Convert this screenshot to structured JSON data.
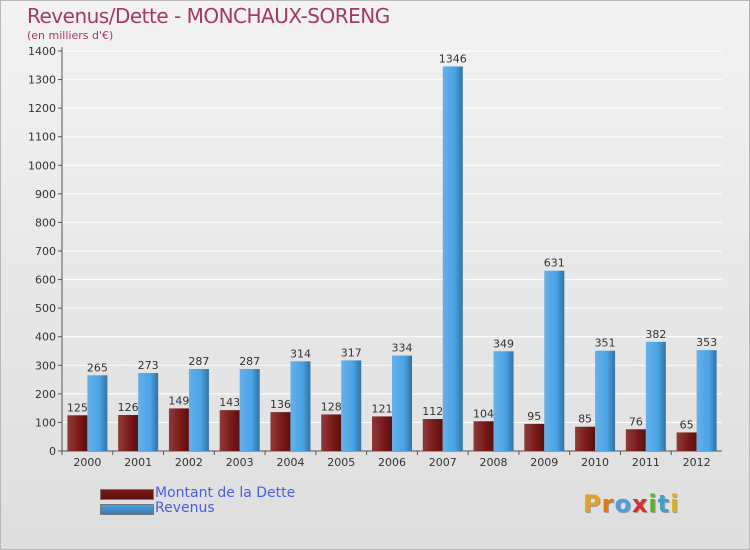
{
  "chart_data": {
    "type": "bar",
    "title": "Revenus/Dette - MONCHAUX-SORENG",
    "subtitle": "(en milliers d'€)",
    "categories": [
      "2000",
      "2001",
      "2002",
      "2003",
      "2004",
      "2005",
      "2006",
      "2007",
      "2008",
      "2009",
      "2010",
      "2011",
      "2012"
    ],
    "series": [
      {
        "name": "Montant de la Dette",
        "color": "#7a1818",
        "values": [
          125,
          126,
          149,
          143,
          136,
          128,
          121,
          112,
          104,
          95,
          85,
          76,
          65
        ]
      },
      {
        "name": "Revenus",
        "color": "#4aa3e6",
        "values": [
          265,
          273,
          287,
          287,
          314,
          317,
          334,
          1346,
          349,
          631,
          351,
          382,
          353
        ]
      }
    ],
    "ylim": [
      0,
      1400
    ],
    "ytick_step": 100,
    "grid": true,
    "xlabel": "",
    "ylabel": ""
  },
  "legend": {
    "items": [
      {
        "label": "Montant de la Dette",
        "color": "#7a1818"
      },
      {
        "label": "Revenus",
        "color": "#4aa3e6"
      }
    ]
  },
  "logo": {
    "letters": [
      "P",
      "r",
      "o",
      "x",
      "i",
      "t",
      "i"
    ],
    "colors": [
      "#e8a020",
      "#e07a10",
      "#4aa0e0",
      "#d03030",
      "#60b030",
      "#40a0d0",
      "#e0b020"
    ]
  }
}
